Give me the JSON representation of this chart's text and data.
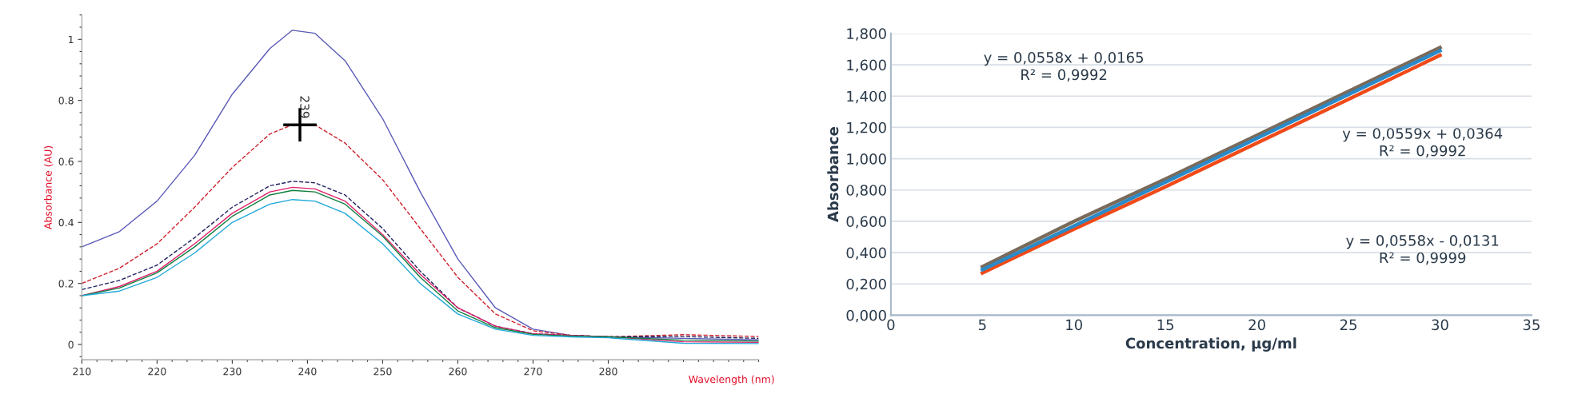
{
  "chart_data": [
    {
      "type": "line",
      "xlabel": "Wavelength (nm)",
      "ylabel": "Absorbance (AU)",
      "xlim": [
        210,
        300
      ],
      "ylim": [
        -0.05,
        1.08
      ],
      "xticks": [
        210,
        220,
        230,
        240,
        250,
        260,
        270,
        280
      ],
      "yticks": [
        0,
        0.2,
        0.4,
        0.6,
        0.8,
        1
      ],
      "grid": false,
      "legend": false,
      "x": [
        210,
        215,
        220,
        225,
        230,
        235,
        238,
        241,
        245,
        250,
        255,
        260,
        265,
        270,
        275,
        280,
        290,
        300
      ],
      "series": [
        {
          "color": "#5a5ab8",
          "line_style": "solid",
          "values": [
            0.32,
            0.37,
            0.47,
            0.62,
            0.82,
            0.97,
            1.03,
            1.02,
            0.93,
            0.74,
            0.5,
            0.28,
            0.12,
            0.05,
            0.03,
            0.025,
            0.02,
            0.015
          ]
        },
        {
          "color": "#d0202c",
          "line_style": "dashed",
          "values": [
            0.2,
            0.25,
            0.33,
            0.45,
            0.58,
            0.69,
            0.72,
            0.72,
            0.66,
            0.54,
            0.38,
            0.22,
            0.1,
            0.045,
            0.03,
            0.025,
            0.032,
            0.026
          ]
        },
        {
          "color": "#202060",
          "line_style": "dashed",
          "values": [
            0.18,
            0.21,
            0.26,
            0.35,
            0.45,
            0.52,
            0.535,
            0.53,
            0.49,
            0.38,
            0.24,
            0.12,
            0.06,
            0.035,
            0.03,
            0.025,
            0.026,
            0.02
          ]
        },
        {
          "color": "#e0206a",
          "line_style": "solid",
          "values": [
            0.16,
            0.19,
            0.24,
            0.33,
            0.43,
            0.5,
            0.515,
            0.51,
            0.47,
            0.36,
            0.23,
            0.12,
            0.06,
            0.035,
            0.03,
            0.025,
            0.009,
            0.007
          ]
        },
        {
          "color": "#108040",
          "line_style": "solid",
          "values": [
            0.16,
            0.185,
            0.235,
            0.32,
            0.42,
            0.49,
            0.505,
            0.5,
            0.46,
            0.355,
            0.22,
            0.11,
            0.055,
            0.033,
            0.028,
            0.025,
            0.014,
            0.011
          ]
        },
        {
          "color": "#20a8d8",
          "line_style": "solid",
          "values": [
            0.16,
            0.175,
            0.22,
            0.3,
            0.4,
            0.46,
            0.475,
            0.47,
            0.43,
            0.33,
            0.2,
            0.1,
            0.05,
            0.03,
            0.025,
            0.022,
            0.004,
            0.003
          ]
        }
      ],
      "annotations": [
        {
          "text": "239",
          "x": 239,
          "y": 0.72
        }
      ]
    },
    {
      "type": "line",
      "xlabel": "Concentration, µg/ml",
      "ylabel": "Absorbance",
      "xlim": [
        0,
        35
      ],
      "ylim": [
        0,
        1.8
      ],
      "xticks": [
        0,
        5,
        10,
        15,
        20,
        25,
        30,
        35
      ],
      "yticks": [
        {
          "value": 0,
          "label": "0,000"
        },
        {
          "value": 0.2,
          "label": "0,200"
        },
        {
          "value": 0.4,
          "label": "0,400"
        },
        {
          "value": 0.6,
          "label": "0,600"
        },
        {
          "value": 0.8,
          "label": "0,800"
        },
        {
          "value": 1.0,
          "label": "1,000"
        },
        {
          "value": 1.2,
          "label": "1,200"
        },
        {
          "value": 1.4,
          "label": "1,400"
        },
        {
          "value": 1.6,
          "label": "1,600"
        },
        {
          "value": 1.8,
          "label": "1,800"
        }
      ],
      "grid": "y",
      "legend": false,
      "x": [
        5,
        10,
        15,
        20,
        25,
        30
      ],
      "series": [
        {
          "color": "#7a6a5a",
          "line_style": "solid",
          "values": [
            0.31,
            0.6,
            0.87,
            1.15,
            1.43,
            1.71
          ]
        },
        {
          "color": "#f04a18",
          "line_style": "solid",
          "values": [
            0.27,
            0.55,
            0.82,
            1.1,
            1.38,
            1.66
          ]
        },
        {
          "color": "#2a8ac8",
          "line_style": "solid",
          "values": [
            0.29,
            0.57,
            0.85,
            1.13,
            1.41,
            1.69
          ]
        }
      ],
      "annotations": [
        "y = 0,0558x + 0,0165\nR² = 0,9992",
        "y = 0,0559x + 0,0364\nR² = 0,9992",
        "y = 0,0558x - 0,0131\nR² = 0,9999"
      ]
    }
  ]
}
